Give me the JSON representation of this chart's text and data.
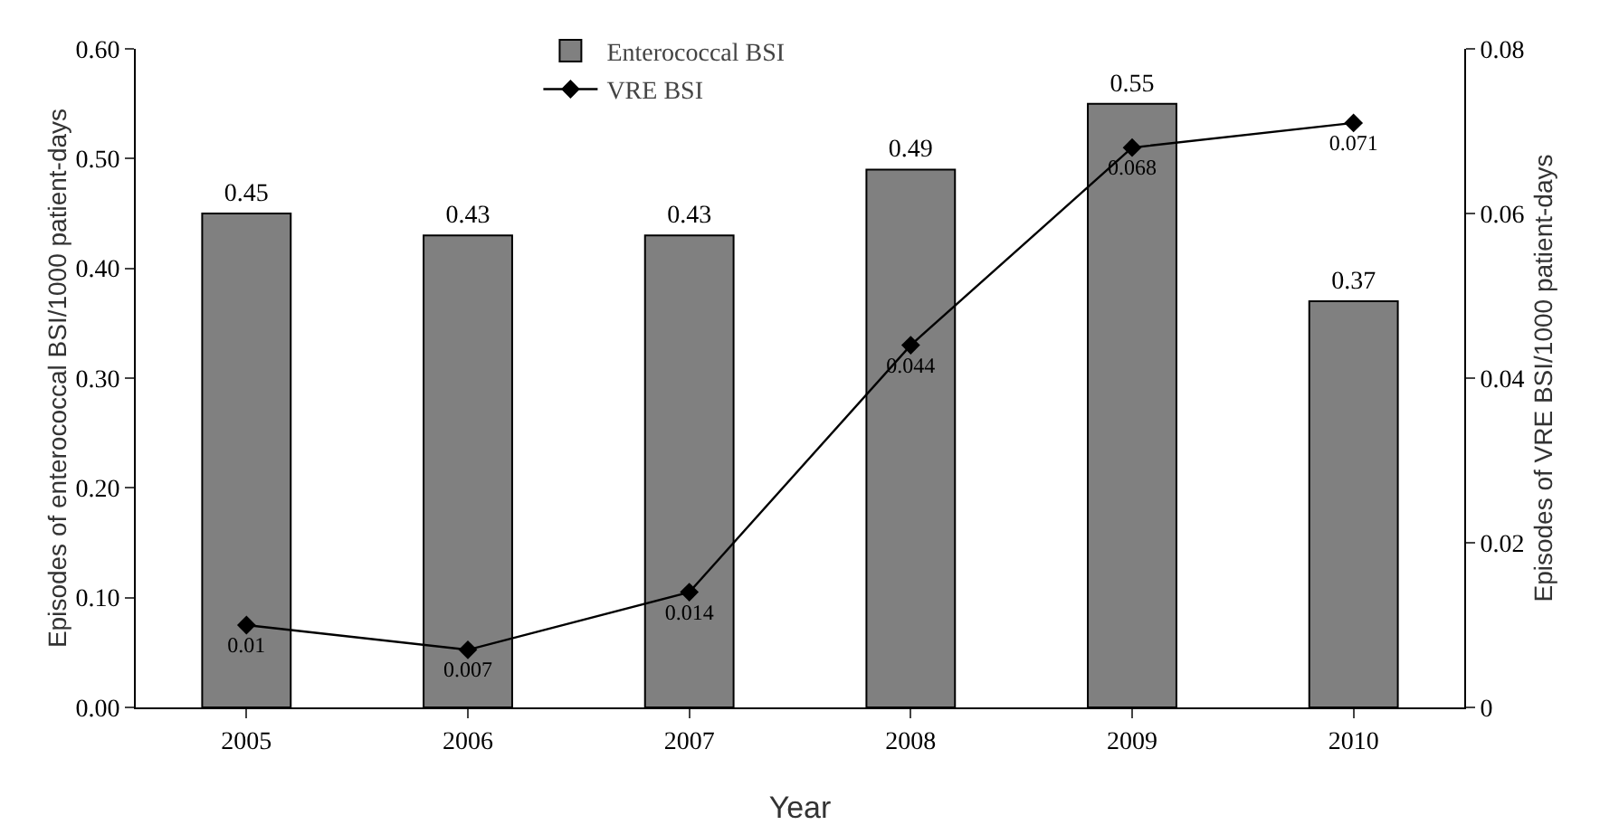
{
  "chart_data": {
    "type": "bar",
    "categories": [
      "2005",
      "2006",
      "2007",
      "2008",
      "2009",
      "2010"
    ],
    "xlabel": "Year",
    "ylabel": "Episodes of enterococcal BSI/1000 patient-days",
    "y2label": "Episodes of VRE BSI/1000 patient-days",
    "series": [
      {
        "name": "Enterococcal BSI",
        "color": "#808080",
        "values": [
          0.45,
          0.43,
          0.43,
          0.49,
          0.55,
          0.37
        ]
      },
      {
        "name": "VRE BSI",
        "type": "line",
        "axis": "y2",
        "color": "#000000",
        "marker": "diamond",
        "line_style": "solid",
        "values": [
          0.01,
          0.007,
          0.014,
          0.044,
          0.068,
          0.071
        ]
      }
    ],
    "ylim": [
      0,
      0.6
    ],
    "yticks": [
      {
        "value": 0,
        "label": "0.00"
      },
      {
        "value": 0.1,
        "label": "0.10"
      },
      {
        "value": 0.2,
        "label": "0.20"
      },
      {
        "value": 0.3,
        "label": "0.30"
      },
      {
        "value": 0.4,
        "label": "0.40"
      },
      {
        "value": 0.5,
        "label": "0.50"
      },
      {
        "value": 0.6,
        "label": "0.60"
      }
    ],
    "y2lim": [
      0,
      0.08
    ],
    "y2ticks": [
      0,
      0.02,
      0.04,
      0.06,
      0.08
    ],
    "data_labels": true,
    "grid": false,
    "legend": "top"
  }
}
